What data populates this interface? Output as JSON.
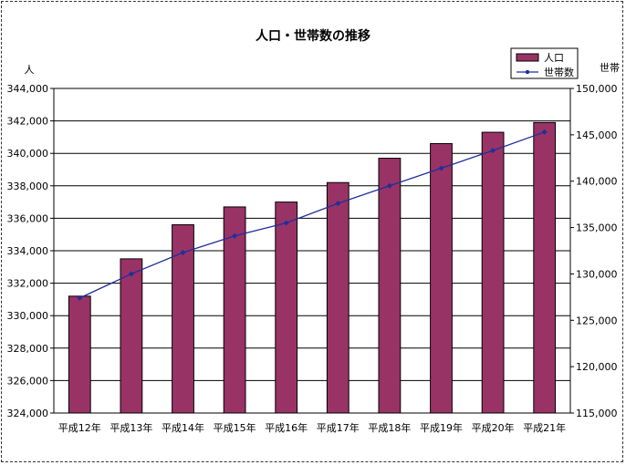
{
  "chart_data": {
    "type": "bar",
    "title": "人口・世帯数の推移",
    "categories": [
      "平成12年",
      "平成13年",
      "平成14年",
      "平成15年",
      "平成16年",
      "平成17年",
      "平成18年",
      "平成19年",
      "平成20年",
      "平成21年"
    ],
    "series": [
      {
        "name": "人口",
        "type": "bar",
        "axis": "left",
        "color": "#993366",
        "values": [
          331200,
          333500,
          335600,
          336700,
          337000,
          338200,
          339700,
          340600,
          341300,
          341900
        ]
      },
      {
        "name": "世帯数",
        "type": "line",
        "axis": "right",
        "color": "#1f2f99",
        "values": [
          127400,
          130000,
          132300,
          134100,
          135500,
          137600,
          139500,
          141400,
          143300,
          145300
        ]
      }
    ],
    "ylabel_left": "人",
    "ylabel_right": "世帯",
    "ylim_left": [
      324000,
      344000
    ],
    "ylim_right": [
      115000,
      150000
    ],
    "yticks_left": [
      "324,000",
      "326,000",
      "328,000",
      "330,000",
      "332,000",
      "334,000",
      "336,000",
      "338,000",
      "340,000",
      "342,000",
      "344,000"
    ],
    "yticks_right": [
      "115,000",
      "120,000",
      "125,000",
      "130,000",
      "135,000",
      "140,000",
      "145,000",
      "150,000"
    ],
    "grid": true,
    "legend_position": "top-right"
  }
}
